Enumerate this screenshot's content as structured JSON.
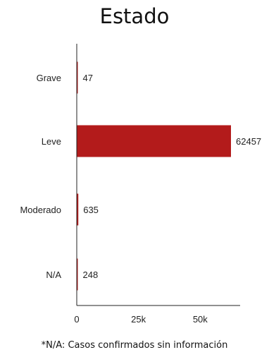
{
  "chart_data": {
    "type": "bar",
    "orientation": "horizontal",
    "title": "Estado",
    "categories": [
      "Grave",
      "Leve",
      "Moderado",
      "N/A"
    ],
    "values": [
      47,
      62457,
      635,
      248
    ],
    "value_labels": [
      "47",
      "62457",
      "635",
      "248"
    ],
    "xticks": [
      0,
      25000,
      50000
    ],
    "xtick_labels": [
      "0",
      "25k",
      "50k"
    ],
    "xlim": [
      0,
      62457
    ],
    "bar_color": "#b31b1b",
    "grid": false,
    "legend": "none",
    "footnote": "*N/A: Casos confirmados sin información"
  }
}
